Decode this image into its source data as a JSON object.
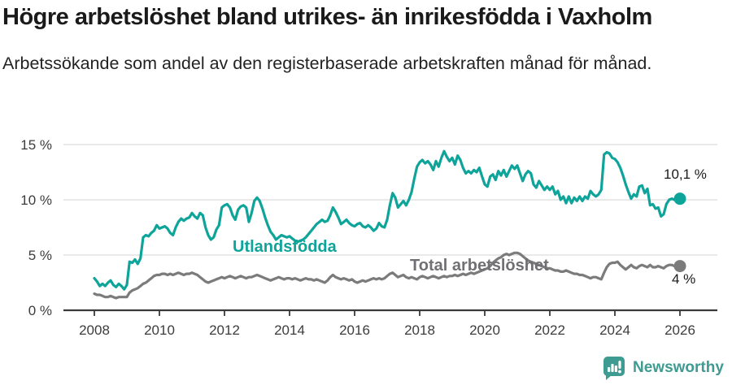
{
  "header": {
    "title": "Högre arbetslöshet bland utrikes- än inrikesfödda i Vaxholm",
    "subtitle": "Arbetssökande som andel av den registerbaserade arbetskraften månad för månad."
  },
  "footer": {
    "brand": "Newsworthy",
    "logo_icon": "bar-chart-exclamation-pin",
    "brand_color": "#3d9b91"
  },
  "colors": {
    "foreign_born_line": "#0ea49a",
    "total_line": "#7b7b7b",
    "grid": "#dcdcdc",
    "axis": "#3a3a3a",
    "tick_text": "#3c3c3c"
  },
  "chart_data": {
    "type": "line",
    "title": "Högre arbetslöshet bland utrikes- än inrikesfödda i Vaxholm",
    "subtitle": "Arbetssökande som andel av den registerbaserade arbetskraften månad för månad.",
    "grid": "horizontal-only",
    "legend_position": "inline-labels",
    "x": {
      "start": "2008-01",
      "end": "2026-01",
      "frequency": "monthly",
      "tick_years": [
        2008,
        2010,
        2012,
        2014,
        2016,
        2018,
        2020,
        2022,
        2024,
        2026
      ]
    },
    "y": {
      "tick_values": [
        0,
        5,
        10,
        15
      ],
      "tick_labels": [
        "0 %",
        "5 %",
        "10 %",
        "15 %"
      ],
      "min": 0,
      "max": 15.6,
      "unit": "%"
    },
    "series": [
      {
        "name": "Utlandsfödda",
        "color": "#0ea49a",
        "end_label": "10,1 %",
        "last_value": 10.1,
        "values": [
          2.9,
          2.6,
          2.2,
          2.4,
          2.2,
          2.5,
          2.7,
          2.3,
          2.1,
          2.4,
          2.2,
          1.9,
          2.3,
          4.4,
          4.3,
          4.6,
          4.2,
          4.7,
          6.6,
          6.8,
          6.7,
          7.0,
          7.2,
          7.7,
          7.4,
          7.5,
          7.6,
          7.4,
          7.0,
          6.8,
          7.5,
          8.0,
          8.3,
          8.1,
          8.3,
          8.4,
          8.8,
          8.5,
          8.3,
          8.8,
          8.6,
          7.5,
          6.8,
          6.4,
          6.6,
          7.3,
          7.7,
          9.3,
          9.5,
          9.6,
          9.3,
          8.6,
          8.2,
          9.1,
          9.4,
          9.5,
          9.3,
          8.0,
          8.8,
          9.9,
          10.2,
          9.9,
          9.2,
          8.4,
          7.7,
          7.1,
          6.8,
          6.4,
          6.6,
          6.8,
          6.7,
          6.6,
          6.7,
          6.5,
          6.3,
          6.2,
          6.3,
          6.4,
          6.6,
          6.9,
          7.2,
          7.5,
          7.8,
          8.0,
          8.2,
          8.0,
          8.1,
          8.6,
          9.3,
          8.9,
          8.4,
          7.8,
          8.0,
          8.2,
          7.9,
          7.7,
          7.6,
          7.8,
          7.9,
          7.6,
          7.5,
          7.7,
          7.5,
          7.2,
          7.4,
          7.9,
          7.6,
          7.5,
          8.2,
          9.5,
          10.6,
          10.2,
          9.3,
          9.6,
          9.9,
          9.5,
          10.0,
          10.7,
          11.9,
          13.0,
          13.4,
          13.6,
          13.3,
          13.5,
          13.2,
          12.7,
          13.5,
          13.0,
          13.8,
          14.4,
          13.9,
          13.5,
          13.8,
          13.2,
          14.0,
          13.6,
          12.9,
          12.4,
          12.6,
          12.4,
          12.7,
          12.5,
          12.9,
          12.1,
          11.4,
          11.2,
          12.1,
          12.3,
          11.8,
          12.6,
          12.2,
          12.7,
          12.1,
          12.6,
          13.1,
          12.8,
          13.1,
          12.4,
          11.7,
          12.3,
          12.6,
          12.4,
          11.4,
          11.1,
          11.7,
          11.3,
          10.9,
          11.2,
          10.9,
          11.2,
          10.5,
          10.8,
          10.0,
          10.3,
          9.7,
          10.3,
          9.7,
          10.2,
          9.9,
          10.3,
          9.9,
          10.3,
          10.1,
          10.8,
          10.5,
          10.3,
          10.5,
          10.9,
          14.1,
          14.3,
          14.2,
          13.8,
          13.7,
          13.4,
          12.9,
          12.2,
          11.4,
          10.7,
          10.1,
          10.5,
          10.3,
          11.2,
          11.3,
          10.6,
          11.0,
          9.5,
          9.6,
          9.2,
          9.3,
          8.5,
          8.7,
          9.6,
          10.0,
          10.1,
          10.0,
          10.0,
          10.1
        ]
      },
      {
        "name": "Total arbetslöshet",
        "color": "#7b7b7b",
        "end_label": "4 %",
        "last_value": 4,
        "values": [
          1.5,
          1.4,
          1.4,
          1.3,
          1.2,
          1.2,
          1.3,
          1.2,
          1.1,
          1.2,
          1.2,
          1.2,
          1.2,
          1.6,
          1.8,
          1.9,
          2.0,
          2.2,
          2.4,
          2.5,
          2.7,
          2.9,
          3.1,
          3.2,
          3.2,
          3.3,
          3.3,
          3.2,
          3.3,
          3.2,
          3.3,
          3.4,
          3.3,
          3.2,
          3.3,
          3.3,
          3.4,
          3.3,
          3.2,
          3.0,
          2.8,
          2.6,
          2.5,
          2.6,
          2.7,
          2.8,
          2.9,
          3.0,
          2.9,
          3.0,
          3.1,
          3.0,
          2.9,
          3.0,
          3.1,
          3.0,
          2.9,
          3.0,
          3.0,
          3.1,
          3.2,
          3.1,
          3.0,
          2.9,
          2.8,
          2.7,
          2.8,
          2.9,
          3.0,
          2.9,
          2.8,
          2.9,
          2.9,
          2.8,
          2.9,
          2.8,
          2.7,
          2.8,
          2.9,
          2.8,
          2.8,
          2.7,
          2.8,
          2.7,
          2.6,
          2.5,
          2.7,
          3.0,
          3.2,
          3.0,
          2.9,
          2.8,
          2.9,
          2.8,
          2.7,
          2.8,
          2.6,
          2.5,
          2.6,
          2.7,
          2.6,
          2.7,
          2.8,
          2.9,
          2.8,
          2.9,
          2.8,
          2.9,
          3.1,
          3.3,
          3.4,
          3.2,
          3.0,
          3.1,
          3.2,
          3.0,
          2.9,
          3.0,
          2.9,
          2.8,
          3.0,
          3.1,
          3.0,
          2.9,
          3.0,
          3.1,
          3.0,
          2.9,
          3.0,
          3.1,
          3.0,
          3.1,
          3.1,
          3.2,
          3.1,
          3.2,
          3.3,
          3.2,
          3.3,
          3.4,
          3.3,
          3.4,
          3.5,
          3.6,
          3.7,
          3.8,
          4.0,
          4.3,
          4.5,
          4.7,
          4.8,
          5.0,
          5.1,
          5.0,
          5.1,
          5.2,
          5.2,
          5.1,
          4.9,
          4.7,
          4.5,
          4.4,
          4.3,
          4.2,
          4.1,
          4.0,
          3.9,
          3.8,
          3.8,
          3.7,
          3.6,
          3.6,
          3.5,
          3.5,
          3.6,
          3.5,
          3.4,
          3.3,
          3.3,
          3.2,
          3.2,
          3.1,
          3.0,
          2.9,
          3.0,
          3.0,
          2.9,
          2.8,
          3.4,
          3.9,
          4.2,
          4.3,
          4.3,
          4.4,
          4.1,
          3.9,
          3.7,
          3.9,
          4.1,
          3.9,
          3.8,
          4.0,
          4.1,
          4.0,
          3.9,
          4.1,
          3.9,
          3.9,
          4.0,
          3.9,
          3.8,
          4.0,
          4.1,
          4.1,
          4.0,
          4.0,
          4.0
        ]
      }
    ]
  }
}
